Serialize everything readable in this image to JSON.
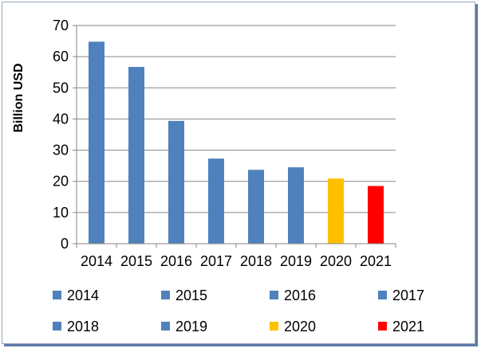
{
  "chart_data": {
    "type": "bar",
    "categories": [
      "2014",
      "2015",
      "2016",
      "2017",
      "2018",
      "2019",
      "2020",
      "2021"
    ],
    "values": [
      64.8,
      56.7,
      39.4,
      27.3,
      23.7,
      24.5,
      20.9,
      18.5
    ],
    "colors": [
      "#4f81bd",
      "#4f81bd",
      "#4f81bd",
      "#4f81bd",
      "#4f81bd",
      "#4f81bd",
      "#ffc000",
      "#ff0000"
    ],
    "title": "",
    "xlabel": "",
    "ylabel": "Billion USD",
    "ylim": [
      0,
      70
    ],
    "yticks": [
      "0",
      "10",
      "20",
      "30",
      "40",
      "50",
      "60",
      "70"
    ],
    "grid": true,
    "legend": {
      "placement": "bottom",
      "entries": [
        "2014",
        "2015",
        "2016",
        "2017",
        "2018",
        "2019",
        "2020",
        "2021"
      ]
    }
  }
}
